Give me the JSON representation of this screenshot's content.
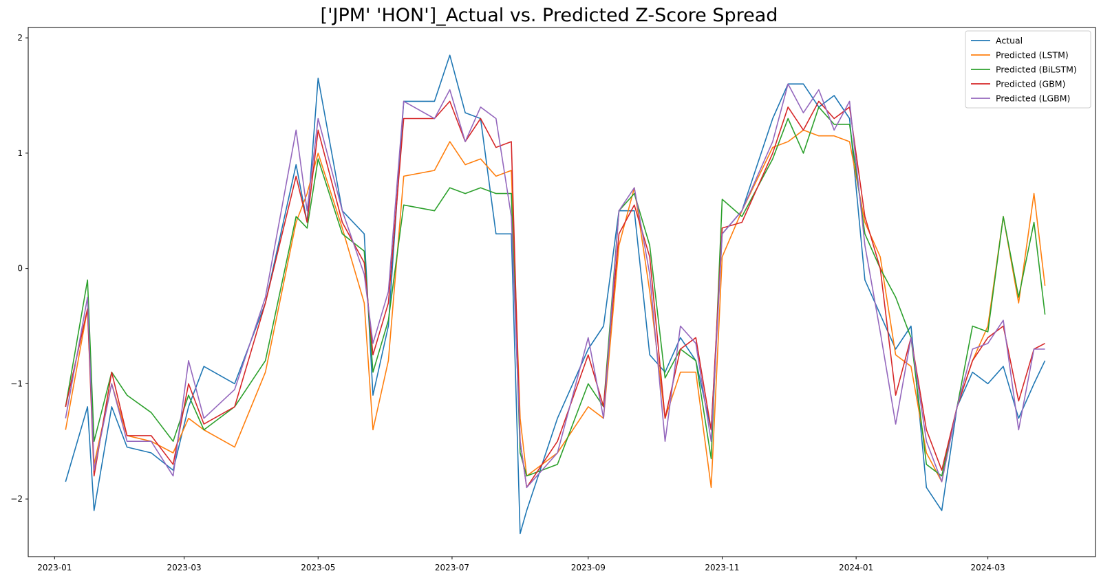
{
  "chart_data": {
    "type": "line",
    "title": "['JPM' 'HON']_Actual vs. Predicted Z-Score Spread",
    "xlabel": "",
    "ylabel": "",
    "xlim": [
      "2022-12-20",
      "2024-04-19"
    ],
    "ylim": [
      -2.5,
      2.09
    ],
    "x_ticks": [
      "2023-01",
      "2023-03",
      "2023-05",
      "2023-07",
      "2023-09",
      "2023-11",
      "2024-01",
      "2024-03"
    ],
    "x_tick_dates": [
      "2023-01-01",
      "2023-03-01",
      "2023-05-01",
      "2023-07-01",
      "2023-09-01",
      "2023-11-01",
      "2024-01-01",
      "2024-03-01"
    ],
    "y_ticks": [
      -2,
      -1,
      0,
      1,
      2
    ],
    "y_tick_labels": [
      "−2",
      "−1",
      "0",
      "1",
      "2"
    ],
    "grid": false,
    "legend_position": "top-right",
    "x": [
      "2023-01-06",
      "2023-01-16",
      "2023-01-19",
      "2023-01-27",
      "2023-02-03",
      "2023-02-14",
      "2023-02-24",
      "2023-03-03",
      "2023-03-10",
      "2023-03-24",
      "2023-04-07",
      "2023-04-21",
      "2023-04-26",
      "2023-05-01",
      "2023-05-12",
      "2023-05-22",
      "2023-05-26",
      "2023-06-02",
      "2023-06-09",
      "2023-06-23",
      "2023-06-30",
      "2023-07-07",
      "2023-07-14",
      "2023-07-21",
      "2023-07-28",
      "2023-08-01",
      "2023-08-04",
      "2023-08-18",
      "2023-09-01",
      "2023-09-08",
      "2023-09-15",
      "2023-09-22",
      "2023-09-29",
      "2023-10-06",
      "2023-10-13",
      "2023-10-20",
      "2023-10-27",
      "2023-11-01",
      "2023-11-10",
      "2023-11-24",
      "2023-12-01",
      "2023-12-08",
      "2023-12-15",
      "2023-12-22",
      "2023-12-29",
      "2024-01-05",
      "2024-01-12",
      "2024-01-19",
      "2024-01-26",
      "2024-02-02",
      "2024-02-09",
      "2024-02-16",
      "2024-02-23",
      "2024-03-01",
      "2024-03-08",
      "2024-03-15",
      "2024-03-22",
      "2024-03-27"
    ],
    "series": [
      {
        "name": "Actual",
        "color": "#1f77b4",
        "values": [
          -1.85,
          -1.2,
          -2.1,
          -1.2,
          -1.55,
          -1.6,
          -1.75,
          -1.2,
          -0.85,
          -1.0,
          -0.3,
          0.9,
          0.4,
          1.65,
          0.5,
          0.3,
          -1.1,
          -0.5,
          1.45,
          1.45,
          1.85,
          1.35,
          1.3,
          0.3,
          0.3,
          -2.3,
          -2.1,
          -1.3,
          -0.7,
          -0.5,
          0.5,
          0.5,
          -0.75,
          -0.9,
          -0.6,
          -0.8,
          -1.4,
          0.3,
          0.5,
          1.3,
          1.6,
          1.6,
          1.4,
          1.5,
          1.3,
          -0.1,
          -0.4,
          -0.7,
          -0.5,
          -1.9,
          -2.1,
          -1.2,
          -0.9,
          -1.0,
          -0.85,
          -1.3,
          -1.0,
          -0.8
        ]
      },
      {
        "name": "Predicted (LSTM)",
        "color": "#ff7f0e",
        "values": [
          -1.4,
          -0.35,
          -1.7,
          -1.0,
          -1.45,
          -1.5,
          -1.6,
          -1.3,
          -1.4,
          -1.55,
          -0.9,
          0.4,
          0.65,
          1.0,
          0.35,
          -0.3,
          -1.4,
          -0.8,
          0.8,
          0.85,
          1.1,
          0.9,
          0.95,
          0.8,
          0.85,
          -1.3,
          -1.8,
          -1.6,
          -1.2,
          -1.3,
          0.2,
          0.7,
          -0.2,
          -1.3,
          -0.9,
          -0.9,
          -1.9,
          0.1,
          0.5,
          1.05,
          1.1,
          1.2,
          1.15,
          1.15,
          1.1,
          0.4,
          0.1,
          -0.75,
          -0.85,
          -1.6,
          -1.85,
          -1.2,
          -0.8,
          -0.5,
          0.45,
          -0.3,
          0.65,
          -0.15
        ]
      },
      {
        "name": "Predicted (BiLSTM)",
        "color": "#2ca02c",
        "values": [
          -1.2,
          -0.1,
          -1.5,
          -0.9,
          -1.1,
          -1.25,
          -1.5,
          -1.1,
          -1.4,
          -1.2,
          -0.8,
          0.45,
          0.35,
          0.95,
          0.3,
          0.15,
          -0.9,
          -0.45,
          0.55,
          0.5,
          0.7,
          0.65,
          0.7,
          0.65,
          0.65,
          -1.6,
          -1.8,
          -1.7,
          -1.0,
          -1.2,
          0.5,
          0.65,
          0.2,
          -0.95,
          -0.7,
          -0.8,
          -1.65,
          0.6,
          0.45,
          0.95,
          1.3,
          1.0,
          1.4,
          1.25,
          1.25,
          0.3,
          0.0,
          -0.25,
          -0.6,
          -1.7,
          -1.8,
          -1.2,
          -0.5,
          -0.55,
          0.45,
          -0.25,
          0.4,
          -0.4
        ]
      },
      {
        "name": "Predicted (GBM)",
        "color": "#d62728",
        "values": [
          -1.2,
          -0.35,
          -1.8,
          -0.9,
          -1.45,
          -1.45,
          -1.7,
          -1.0,
          -1.35,
          -1.2,
          -0.3,
          0.8,
          0.4,
          1.2,
          0.4,
          0.05,
          -0.75,
          -0.3,
          1.3,
          1.3,
          1.45,
          1.1,
          1.3,
          1.05,
          1.1,
          -1.5,
          -1.9,
          -1.5,
          -0.75,
          -1.2,
          0.3,
          0.55,
          0.1,
          -1.3,
          -0.7,
          -0.6,
          -1.4,
          0.35,
          0.4,
          1.0,
          1.4,
          1.2,
          1.45,
          1.3,
          1.4,
          0.45,
          0.0,
          -1.1,
          -0.6,
          -1.4,
          -1.75,
          -1.2,
          -0.8,
          -0.6,
          -0.5,
          -1.15,
          -0.7,
          -0.65
        ]
      },
      {
        "name": "Predicted (LGBM)",
        "color": "#9467bd",
        "values": [
          -1.3,
          -0.25,
          -1.75,
          -1.0,
          -1.5,
          -1.5,
          -1.8,
          -0.8,
          -1.3,
          -1.05,
          -0.25,
          1.2,
          0.5,
          1.3,
          0.5,
          -0.05,
          -0.65,
          -0.2,
          1.45,
          1.3,
          1.55,
          1.1,
          1.4,
          1.3,
          0.45,
          -1.5,
          -1.9,
          -1.6,
          -0.6,
          -1.3,
          0.5,
          0.7,
          -0.05,
          -1.5,
          -0.5,
          -0.65,
          -1.5,
          0.3,
          0.5,
          1.1,
          1.6,
          1.35,
          1.55,
          1.2,
          1.45,
          0.2,
          -0.55,
          -1.35,
          -0.6,
          -1.5,
          -1.85,
          -1.2,
          -0.7,
          -0.65,
          -0.45,
          -1.4,
          -0.7,
          -0.7
        ]
      }
    ]
  }
}
